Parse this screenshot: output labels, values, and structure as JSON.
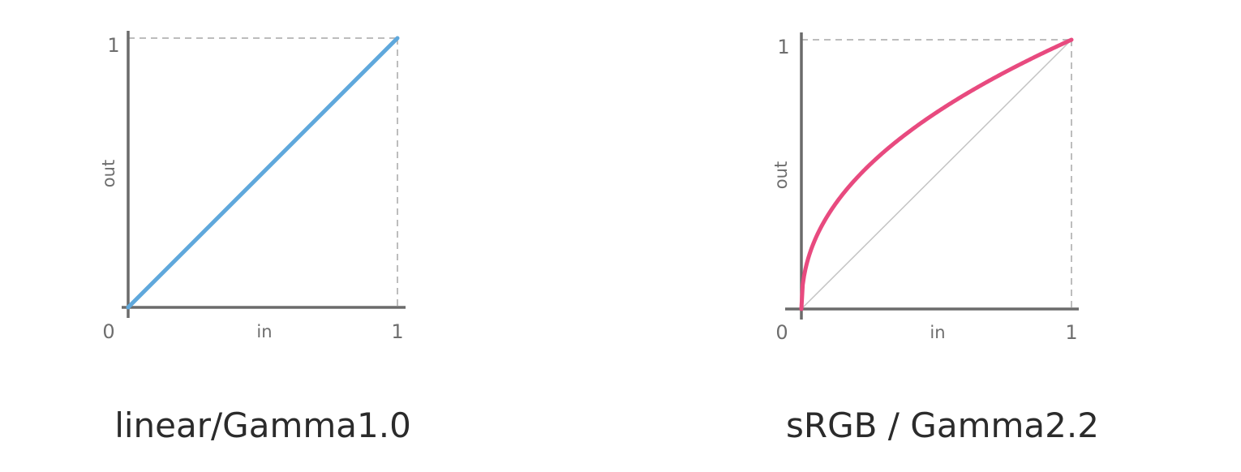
{
  "colors": {
    "linear_series": "#5fa8dc",
    "srgb_series": "#e84a7f",
    "axis": "#6b6b6b",
    "reference": "#c4c4c4"
  },
  "chart_data": [
    {
      "type": "line",
      "caption": "linear/Gamma1.0",
      "xlabel": "in",
      "ylabel": "out",
      "x_ticks": [
        "0",
        "1"
      ],
      "y_ticks": [
        "1"
      ],
      "xlim": [
        0,
        1
      ],
      "ylim": [
        0,
        1
      ],
      "gamma": 1.0,
      "grid": false,
      "series": [
        {
          "x": [
            0,
            1
          ],
          "y": [
            0,
            1
          ]
        }
      ]
    },
    {
      "type": "line",
      "caption": "sRGB / Gamma2.2",
      "xlabel": "in",
      "ylabel": "out",
      "x_ticks": [
        "0",
        "1"
      ],
      "y_ticks": [
        "1"
      ],
      "xlim": [
        0,
        1
      ],
      "ylim": [
        0,
        1
      ],
      "gamma": 2.2,
      "grid": false,
      "series": [
        {
          "x": [
            0,
            0.01,
            0.05,
            0.1,
            0.2,
            0.3,
            0.4,
            0.5,
            0.6,
            0.7,
            0.8,
            0.9,
            1
          ],
          "y": [
            0,
            0.123,
            0.256,
            0.351,
            0.481,
            0.579,
            0.659,
            0.73,
            0.793,
            0.85,
            0.904,
            0.953,
            1
          ]
        },
        {
          "x": [
            0,
            1
          ],
          "y": [
            0,
            1
          ]
        }
      ]
    }
  ]
}
